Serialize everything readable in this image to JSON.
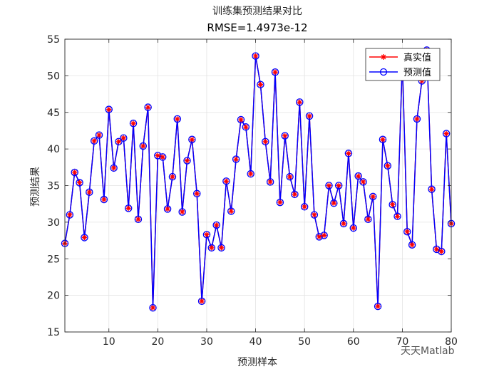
{
  "chart_data": {
    "type": "line",
    "title": "训练集预测结果对比",
    "subtitle": "RMSE=1.4973e-12",
    "xlabel": "预测样本",
    "ylabel": "预测结果",
    "xlim": [
      1,
      80
    ],
    "ylim": [
      15,
      55
    ],
    "xticks": [
      10,
      20,
      30,
      40,
      50,
      60,
      70,
      80
    ],
    "yticks": [
      15,
      20,
      25,
      30,
      35,
      40,
      45,
      50,
      55
    ],
    "grid": true,
    "legend_position": "top-right",
    "series": [
      {
        "name": "真实值",
        "color": "#ff0000",
        "marker": "asterisk",
        "values": [
          27.1,
          31.0,
          36.8,
          35.4,
          27.9,
          34.1,
          41.1,
          41.9,
          33.1,
          45.4,
          37.4,
          41.0,
          41.5,
          31.9,
          43.5,
          30.4,
          40.4,
          45.7,
          18.3,
          39.1,
          38.9,
          31.8,
          36.2,
          44.1,
          31.4,
          38.4,
          41.3,
          33.9,
          19.2,
          28.3,
          26.5,
          29.6,
          26.5,
          35.6,
          31.5,
          38.6,
          44.0,
          43.0,
          36.6,
          52.7,
          48.8,
          41.0,
          35.5,
          50.5,
          32.7,
          41.8,
          36.2,
          33.8,
          46.4,
          32.1,
          44.5,
          31.0,
          28.0,
          28.2,
          35.0,
          32.6,
          35.0,
          29.8,
          39.4,
          29.2,
          36.3,
          35.5,
          30.4,
          33.5,
          18.5,
          41.3,
          37.7,
          32.4,
          30.8,
          52.0,
          28.7,
          26.9,
          44.1,
          49.3,
          53.5,
          34.5,
          26.3,
          26.0,
          42.1,
          29.8
        ]
      },
      {
        "name": "预测值",
        "color": "#0000ff",
        "marker": "circle",
        "values": [
          27.1,
          31.0,
          36.8,
          35.4,
          27.9,
          34.1,
          41.1,
          41.9,
          33.1,
          45.4,
          37.4,
          41.0,
          41.5,
          31.9,
          43.5,
          30.4,
          40.4,
          45.7,
          18.3,
          39.1,
          38.9,
          31.8,
          36.2,
          44.1,
          31.4,
          38.4,
          41.3,
          33.9,
          19.2,
          28.3,
          26.5,
          29.6,
          26.5,
          35.6,
          31.5,
          38.6,
          44.0,
          43.0,
          36.6,
          52.7,
          48.8,
          41.0,
          35.5,
          50.5,
          32.7,
          41.8,
          36.2,
          33.8,
          46.4,
          32.1,
          44.5,
          31.0,
          28.0,
          28.2,
          35.0,
          32.6,
          35.0,
          29.8,
          39.4,
          29.2,
          36.3,
          35.5,
          30.4,
          33.5,
          18.5,
          41.3,
          37.7,
          32.4,
          30.8,
          52.0,
          28.7,
          26.9,
          44.1,
          49.3,
          53.5,
          34.5,
          26.3,
          26.0,
          42.1,
          29.8
        ]
      }
    ]
  },
  "watermark": "天天Matlab"
}
